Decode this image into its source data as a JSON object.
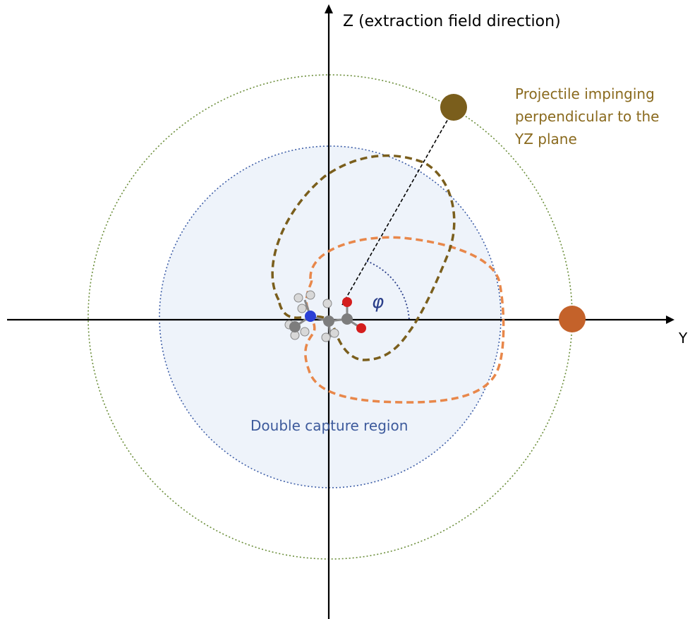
{
  "labels": {
    "z_axis": "Z (extraction field direction)",
    "y_axis": "Y",
    "projectile_line1": "Projectile impinging",
    "projectile_line2": "perpendicular to the",
    "projectile_line3": "YZ plane",
    "double_capture": "Double capture region",
    "angle": "φ"
  },
  "colors": {
    "axis": "#000000",
    "outer_circle": "#6b8e3a",
    "capture_region_stroke": "#3f5fa8",
    "capture_region_fill": "#eef3fa",
    "projectile_brown": "#7a5e1c",
    "projectile_label": "#8a6a1e",
    "projectile_orange": "#c4622a",
    "orange_loop": "#e8874a",
    "brown_loop": "#7a5e1c",
    "capture_label": "#3d5a9c",
    "angle_label": "#2b3f8a"
  },
  "icons": [
    "molecule-icon"
  ]
}
